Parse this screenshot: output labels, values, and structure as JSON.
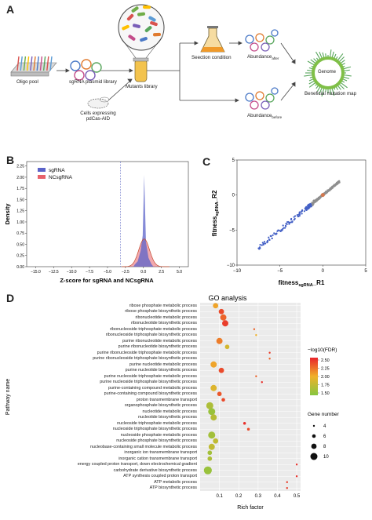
{
  "panel_letters": [
    "A",
    "B",
    "C",
    "D"
  ],
  "panel_a": {
    "oligo_pool": "Oligo pool",
    "sgrna_library": "sgRNA plasmid library",
    "cells": "Cells expressing",
    "cells2": "pdCas-AID",
    "mutants_library": "Mutants library",
    "selection": "Seection condition",
    "abundance_after": "Abundance",
    "abundance_after_sub": "after",
    "abundance_before": "Abundance",
    "abundance_before_sub": "before",
    "genome": "Genome",
    "beneficial_map": "Beneficial mutation map"
  },
  "panel_b": {
    "ylabel": "Density",
    "xlabel": "Z-score for sgRNA and NCsgRNA",
    "legend": [
      "sgRNA",
      "NCsgRNA"
    ],
    "colors": {
      "sgRNA": "#5b63c9",
      "NCsgRNA": "#e8626b"
    },
    "yticks": [
      "0.00",
      "0.25",
      "0.50",
      "0.75",
      "1.00",
      "1.25",
      "1.50",
      "1.75",
      "2.00",
      "2.25"
    ],
    "xticks": [
      "−15.0",
      "−12.5",
      "−10.0",
      "−7.5",
      "−5.0",
      "−2.5",
      "0.0",
      "2.5",
      "5.0"
    ]
  },
  "panel_c": {
    "xlabel_main": "fitness",
    "xlabel_sub": "sgRNA",
    "xlabel_tail": "_R1",
    "ylabel_main": "fitness",
    "ylabel_sub": "sgRNA",
    "ylabel_tail": "_R2",
    "xticks": [
      "−10",
      "−5",
      "0",
      "5"
    ],
    "yticks": [
      "5",
      "0",
      "−5",
      "−10"
    ]
  },
  "chart_data": {
    "type": "scatter",
    "title": "GO analysis",
    "xlabel": "Rich factor",
    "ylabel": "Pathway name",
    "xlim": [
      0,
      0.52
    ],
    "xticks": [
      "0.1",
      "0.2",
      "0.3",
      "0.4",
      "0.5"
    ],
    "color_legend_title": "−log10(FDR)",
    "color_legend_ticks": [
      "2.50",
      "2.25",
      "2.00",
      "1.75",
      "1.50"
    ],
    "size_legend_title": "Gene number",
    "size_legend_values": [
      "4",
      "6",
      "8",
      "10"
    ],
    "grid": true,
    "terms": [
      "ribose phosphate metabolic process",
      "ribose phosphate biosynthetic process",
      "ribonucleotide metabolic process",
      "ribonucleotide biosynthetic process",
      "ribonucleoside triphosphate metabolic process",
      "ribonucleoside triphosphate biosynthetic process",
      "purine ribonucleotide metabolic process",
      "purine ribonucleotide biosynthetic process",
      "purine ribonucleoside triphosphate metabolic process",
      "purine ribonucleoside triphosphate biosynthetic process",
      "purine nucleotide metabolic process",
      "purine nucleotide biosynthetic process",
      "purine nucleoside triphosphate metabolic process",
      "purine nucleoside triphosphate biosynthetic process",
      "purine-containing compound metabolic process",
      "purine-containing compound biosynthetic process",
      "proton transmembrane transport",
      "organophosphate biosynthetic process",
      "nucleotide metabolic process",
      "nucleotide biosynthetic process",
      "nucleoside triphosphate metabolic process",
      "nucleoside triphosphate biosynthetic process",
      "nucleoside phosphate metabolic process",
      "nucleoside phosphate biosynthetic process",
      "nucleobase-containing small molecule metabolic process",
      "inorganic ion transmembrane transport",
      "inorganic cation transmembrane transport",
      "energy coupled proton transport, down electrochemical gradient",
      "carbohydrate derivative biosynthetic process",
      "ATP synthesis coupled proton transport",
      "ATP metabolic process",
      "ATP biosynthetic process"
    ],
    "rich_factor": [
      0.08,
      0.11,
      0.12,
      0.13,
      0.28,
      0.29,
      0.1,
      0.14,
      0.36,
      0.36,
      0.07,
      0.11,
      0.29,
      0.32,
      0.07,
      0.1,
      0.12,
      0.05,
      0.06,
      0.07,
      0.23,
      0.25,
      0.06,
      0.08,
      0.06,
      0.05,
      0.05,
      0.5,
      0.04,
      0.5,
      0.45,
      0.45
    ],
    "neg_log10_fdr": [
      2.05,
      2.4,
      2.3,
      2.45,
      2.3,
      2.0,
      2.2,
      1.85,
      2.45,
      2.3,
      2.05,
      2.4,
      2.3,
      2.5,
      1.9,
      2.35,
      2.4,
      1.65,
      1.55,
      1.7,
      2.5,
      2.4,
      1.6,
      1.75,
      1.75,
      1.6,
      1.65,
      2.5,
      1.55,
      2.5,
      2.45,
      2.45
    ],
    "gene_number": [
      8,
      8,
      9,
      9,
      4,
      4,
      9,
      7,
      4,
      4,
      9,
      8,
      4,
      4,
      9,
      7,
      6,
      10,
      10,
      9,
      5,
      5,
      10,
      8,
      9,
      7,
      7,
      4,
      11,
      4,
      4,
      4
    ]
  }
}
